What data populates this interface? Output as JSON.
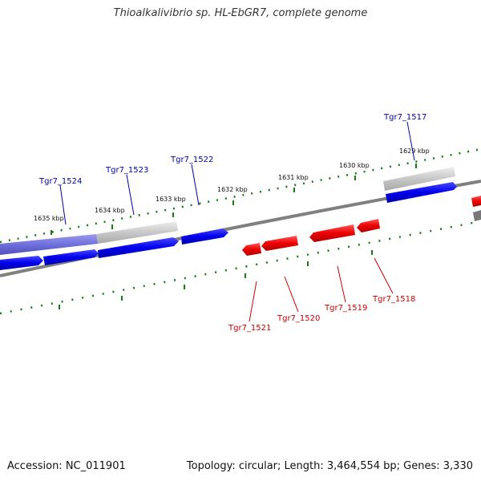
{
  "title": "Thioalkalivibrio sp. HL-EbGR7, complete genome",
  "footer": {
    "accession": "Accession: NC_011901",
    "summary": "Topology: circular; Length: 3,464,554 bp; Genes: 3,330"
  },
  "colors": {
    "forward_gene": "#0000ee",
    "reverse_gene": "#ee0000",
    "backbone": "#808080",
    "tick": "#1a7a1a",
    "label_forward": "#0000aa",
    "label_reverse": "#cc0000"
  },
  "ruler": [
    {
      "label": "1629 kbp"
    },
    {
      "label": "1630 kbp"
    },
    {
      "label": "1631 kbp"
    },
    {
      "label": "1632 kbp"
    },
    {
      "label": "1633 kbp"
    },
    {
      "label": "1634 kbp"
    },
    {
      "label": "1635 kbp"
    }
  ],
  "genes_forward": [
    {
      "label": "Tgr7_1517"
    },
    {
      "label": "Tgr7_1522"
    },
    {
      "label": "Tgr7_1523"
    },
    {
      "label": "Tgr7_1524"
    }
  ],
  "genes_reverse": [
    {
      "label": "Tgr7_1518"
    },
    {
      "label": "Tgr7_1519"
    },
    {
      "label": "Tgr7_1520"
    },
    {
      "label": "Tgr7_1521"
    }
  ]
}
